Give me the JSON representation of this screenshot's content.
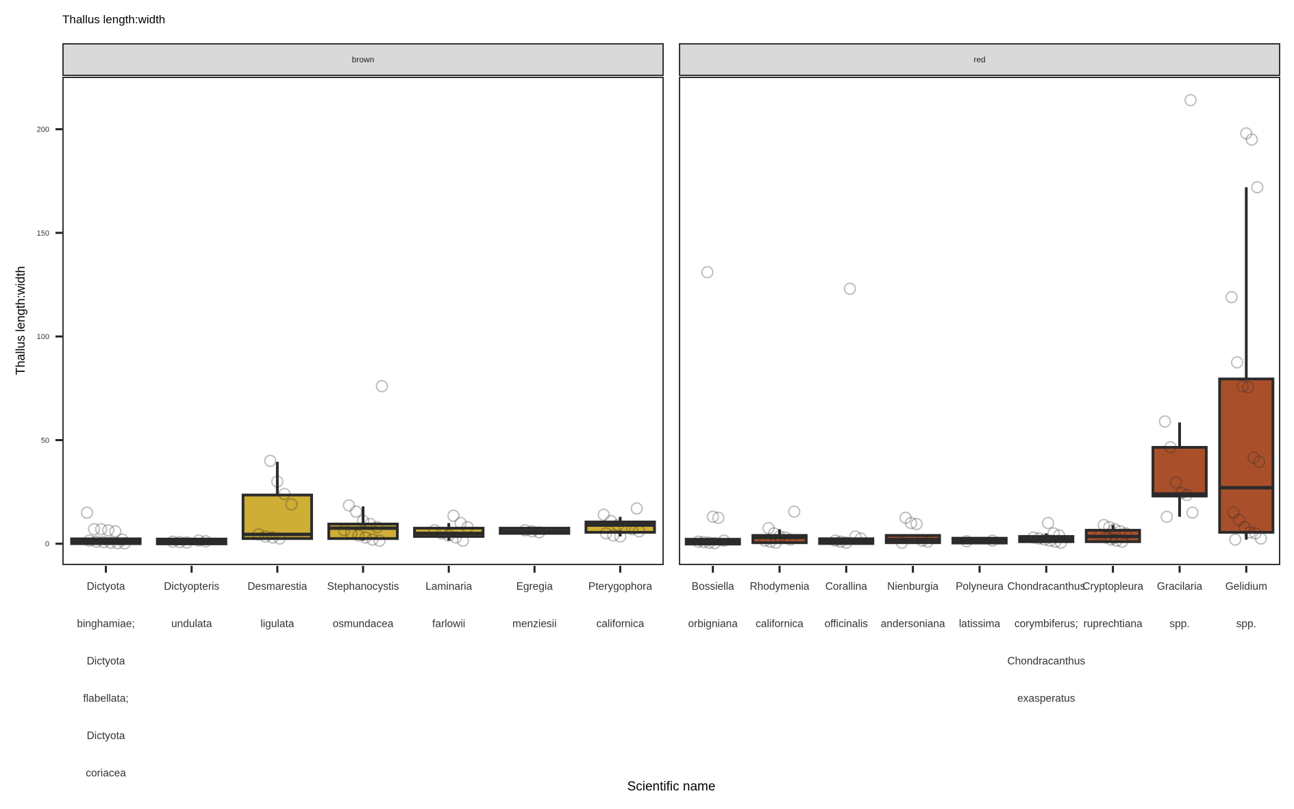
{
  "chart_data": {
    "type": "box",
    "title": "Thallus length:width",
    "xlabel": "Scientific name",
    "ylabel": "Thallus length:width",
    "ylim": [
      -10,
      225
    ],
    "yticks": [
      0,
      50,
      100,
      150,
      200
    ],
    "grid": false,
    "legend": "none",
    "facets": [
      {
        "name": "brown",
        "color": "#cfae35",
        "categories": [
          {
            "label": [
              "Dictyota",
              "binghamiae;",
              "Dictyota",
              "flabellata;",
              "Dictyota",
              "coriacea"
            ],
            "box": {
              "q1": 0.6,
              "median": 1.2,
              "q3": 1.8,
              "lower": 0.2,
              "upper": 2.5
            },
            "points": [
              15,
              7,
              7,
              6.5,
              6,
              2,
              1.5,
              1,
              0.8,
              0.5,
              0.3,
              0.2
            ]
          },
          {
            "label": [
              "Dictyopteris",
              "undulata"
            ],
            "box": {
              "q1": 0.6,
              "median": 1.0,
              "q3": 1.6,
              "lower": 0.3,
              "upper": 2.0
            },
            "points": [
              1.5,
              1.2,
              1.0,
              0.8,
              0.6
            ]
          },
          {
            "label": [
              "Desmarestia",
              "ligulata"
            ],
            "box": {
              "q1": 2.5,
              "median": 4.5,
              "q3": 23.5,
              "lower": 2.5,
              "upper": 39.5
            },
            "points": [
              40,
              30,
              24,
              19,
              4.5,
              3.5,
              3,
              2.5
            ]
          },
          {
            "label": [
              "Stephanocystis",
              "osmundacea"
            ],
            "box": {
              "q1": 2.5,
              "median": 7.5,
              "q3": 9.5,
              "lower": 1.5,
              "upper": 18
            },
            "points": [
              76,
              18.5,
              15.5,
              11,
              9.5,
              8,
              6.5,
              5,
              4,
              3,
              2,
              1.5
            ]
          },
          {
            "label": [
              "Laminaria",
              "farlowii"
            ],
            "box": {
              "q1": 3.5,
              "median": 5.0,
              "q3": 7.5,
              "lower": 1.5,
              "upper": 10
            },
            "points": [
              13.5,
              10,
              8,
              6.5,
              5,
              4,
              3,
              1.5
            ]
          },
          {
            "label": [
              "Egregia",
              "menziesii"
            ],
            "box": {
              "q1": 5.0,
              "median": 6.0,
              "q3": 7.5,
              "lower": 5.0,
              "upper": 7.5
            },
            "points": [
              6.5,
              6,
              5.5
            ]
          },
          {
            "label": [
              "Pterygophora",
              "californica"
            ],
            "box": {
              "q1": 5.5,
              "median": 9.0,
              "q3": 10.5,
              "lower": 3.5,
              "upper": 13
            },
            "points": [
              17,
              14,
              11,
              9,
              8,
              7,
              6,
              5,
              4,
              3.5
            ]
          }
        ]
      },
      {
        "name": "red",
        "color": "#a9502a",
        "categories": [
          {
            "label": [
              "Bossiella",
              "orbigniana"
            ],
            "box": {
              "q1": 0.5,
              "median": 1.0,
              "q3": 1.5,
              "lower": 0.2,
              "upper": 2.0
            },
            "points": [
              131,
              13,
              12.5,
              1.5,
              1,
              0.8,
              0.5,
              0.3
            ]
          },
          {
            "label": [
              "Rhodymenia",
              "californica"
            ],
            "box": {
              "q1": 0.5,
              "median": 3.0,
              "q3": 4.0,
              "lower": 0.2,
              "upper": 7
            },
            "points": [
              15.5,
              7.5,
              5,
              3.5,
              3,
              2,
              1.5,
              1,
              0.5
            ]
          },
          {
            "label": [
              "Corallina",
              "officinalis"
            ],
            "box": {
              "q1": 0.5,
              "median": 1.2,
              "q3": 2.0,
              "lower": 0.2,
              "upper": 3
            },
            "points": [
              123,
              3.5,
              2.5,
              1.5,
              1,
              0.5
            ]
          },
          {
            "label": [
              "Nienburgia",
              "andersoniana"
            ],
            "box": {
              "q1": 0.5,
              "median": 2.0,
              "q3": 4.0,
              "lower": 0.2,
              "upper": 4.0
            },
            "points": [
              12.5,
              10,
              9.5,
              1.5,
              1,
              0.5
            ]
          },
          {
            "label": [
              "Polyneura",
              "latissima"
            ],
            "box": {
              "q1": 0.5,
              "median": 1.5,
              "q3": 2.5,
              "lower": 0.5,
              "upper": 2.5
            },
            "points": [
              1.5,
              1.2
            ]
          },
          {
            "label": [
              "Chondracanthus",
              "corymbiferus;",
              "Chondracanthus",
              "exasperatus"
            ],
            "box": {
              "q1": 1.0,
              "median": 2.0,
              "q3": 3.5,
              "lower": 0.5,
              "upper": 5
            },
            "points": [
              10,
              5,
              4,
              3,
              2.5,
              2,
              1.5,
              1,
              0.5
            ]
          },
          {
            "label": [
              "Cryptopleura",
              "ruprechtiana"
            ],
            "box": {
              "q1": 1.0,
              "median": 3.5,
              "q3": 6.5,
              "lower": 0.2,
              "upper": 9
            },
            "points": [
              9,
              8,
              7,
              6,
              5,
              4,
              3,
              2,
              1.5,
              1
            ]
          },
          {
            "label": [
              "Gracilaria",
              "spp."
            ],
            "box": {
              "q1": 23,
              "median": 24,
              "q3": 46.5,
              "lower": 13,
              "upper": 58.5
            },
            "points": [
              214,
              59,
              46.5,
              29.5,
              24.5,
              23.5,
              15,
              13
            ]
          },
          {
            "label": [
              "Gelidium",
              "spp."
            ],
            "box": {
              "q1": 5.5,
              "median": 27,
              "q3": 79.5,
              "lower": 2,
              "upper": 172
            },
            "points": [
              198,
              195,
              172,
              119,
              87.5,
              76,
              75.5,
              41.5,
              39.5,
              15,
              11.5,
              8,
              5.5,
              5,
              2.5,
              2
            ]
          }
        ]
      }
    ]
  }
}
